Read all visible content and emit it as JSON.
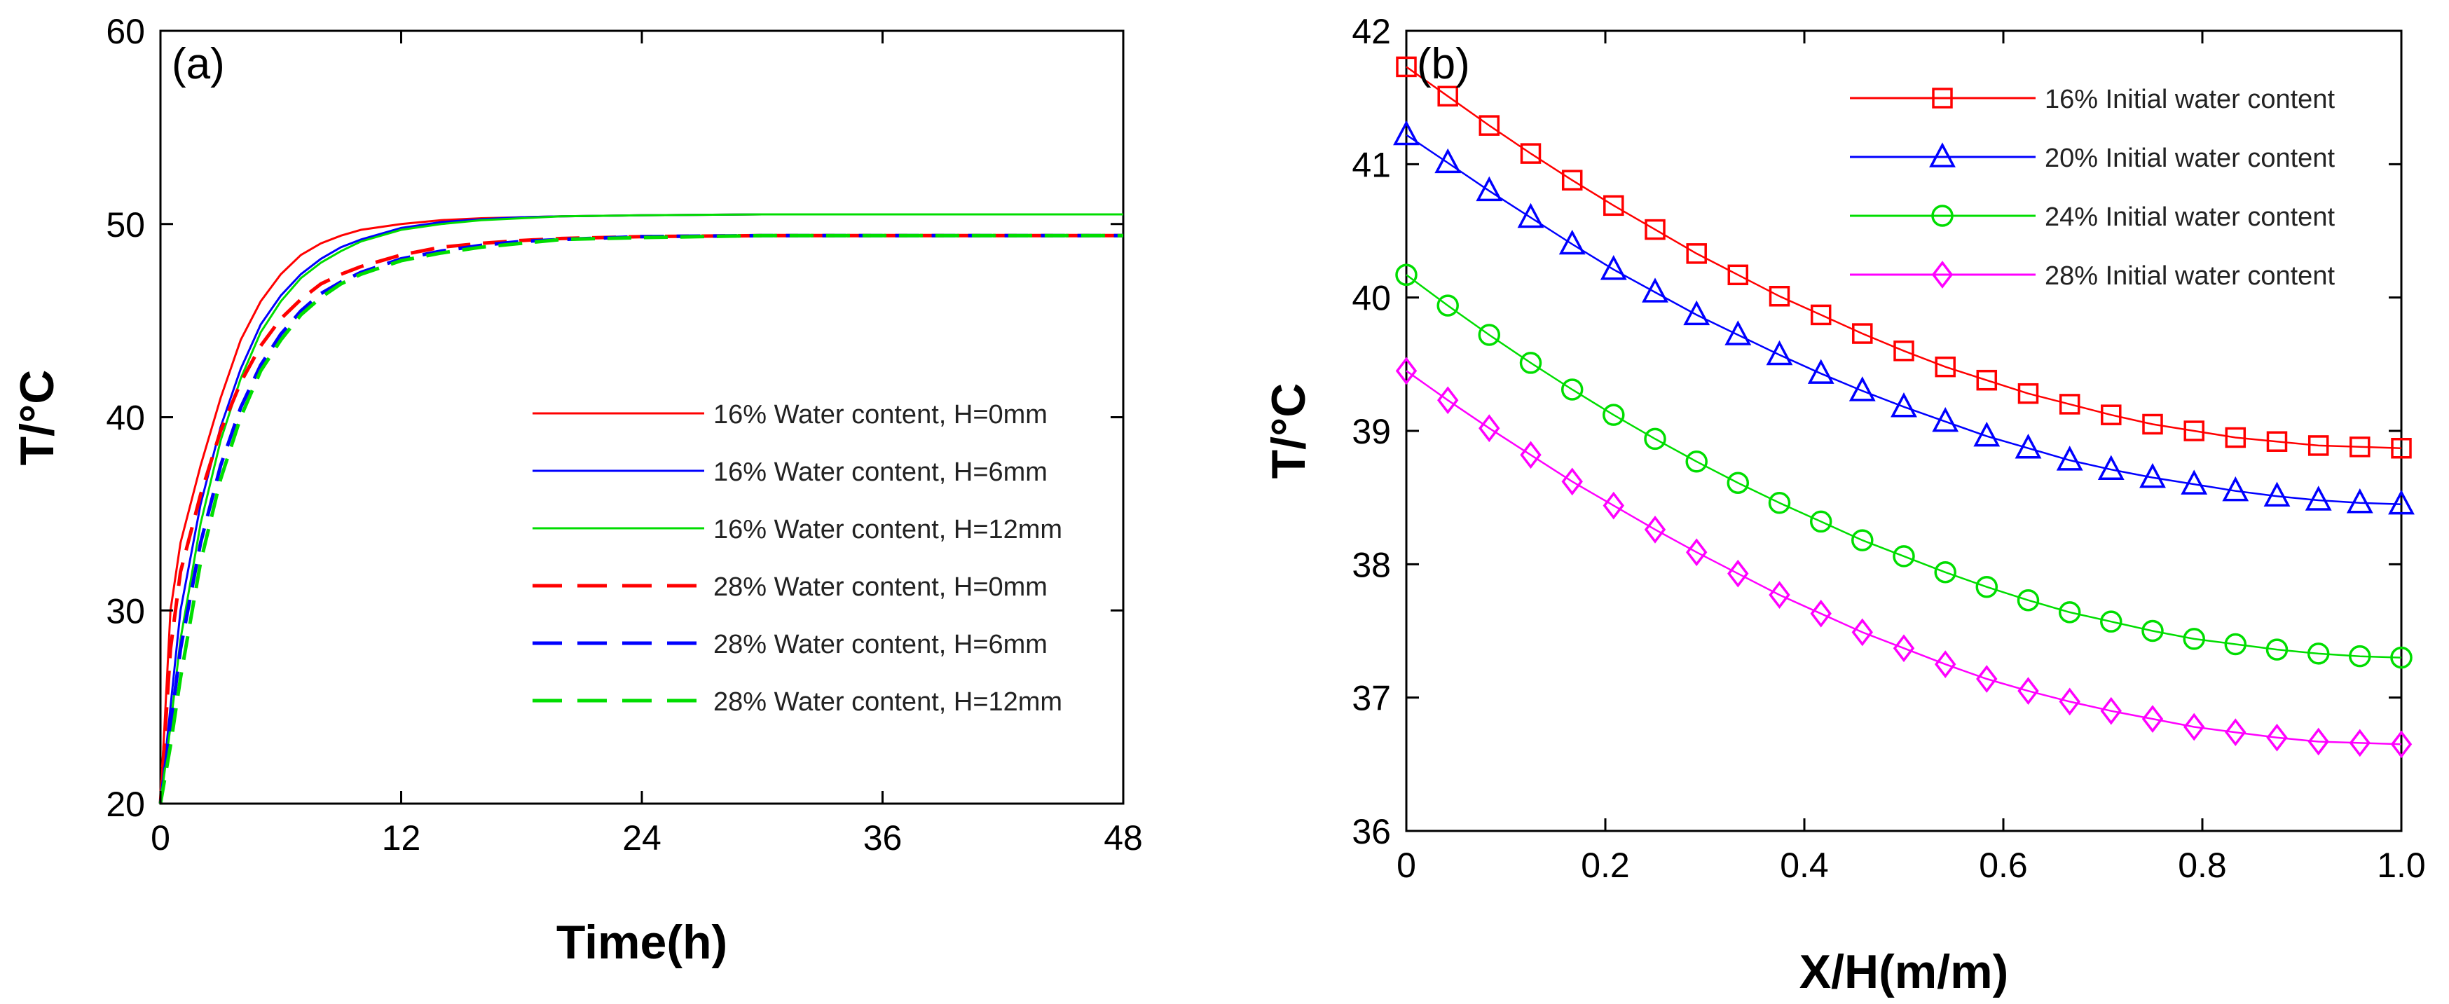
{
  "chart_data": [
    {
      "type": "line",
      "panel_label": "(a)",
      "title": "",
      "xlabel": "Time(h)",
      "ylabel": "T/°C",
      "xlim": [
        0,
        48
      ],
      "ylim": [
        20,
        60
      ],
      "xticks": [
        0,
        12,
        24,
        36,
        48
      ],
      "yticks": [
        20,
        30,
        40,
        50,
        60
      ],
      "grid": false,
      "legend_position": "right",
      "series": [
        {
          "name": "16% Water content, H=0mm",
          "color": "#ff0000",
          "dash": "solid",
          "x": [
            0,
            0.5,
            1,
            2,
            3,
            4,
            5,
            6,
            7,
            8,
            9,
            10,
            12,
            14,
            16,
            18,
            20,
            24,
            30,
            36,
            42,
            48
          ],
          "y": [
            20,
            30,
            33.5,
            37.5,
            41,
            44,
            46,
            47.4,
            48.4,
            49.0,
            49.4,
            49.7,
            50.0,
            50.2,
            50.3,
            50.35,
            50.4,
            50.45,
            50.5,
            50.5,
            50.5,
            50.5
          ]
        },
        {
          "name": "16% Water content, H=6mm",
          "color": "#0000ff",
          "dash": "solid",
          "x": [
            0,
            0.5,
            1,
            2,
            3,
            4,
            5,
            6,
            7,
            8,
            9,
            10,
            12,
            14,
            16,
            18,
            20,
            24,
            30,
            36,
            42,
            48
          ],
          "y": [
            20,
            25,
            30,
            35.5,
            39.5,
            42.5,
            44.8,
            46.3,
            47.4,
            48.2,
            48.8,
            49.2,
            49.8,
            50.1,
            50.25,
            50.35,
            50.4,
            50.45,
            50.5,
            50.5,
            50.5,
            50.5
          ]
        },
        {
          "name": "16% Water content, H=12mm",
          "color": "#00dd00",
          "dash": "solid",
          "x": [
            0,
            0.5,
            1,
            2,
            3,
            4,
            5,
            6,
            7,
            8,
            9,
            10,
            12,
            14,
            16,
            18,
            20,
            24,
            30,
            36,
            42,
            48
          ],
          "y": [
            20,
            24,
            28.5,
            34.5,
            38.8,
            42,
            44.4,
            46,
            47.2,
            48.0,
            48.6,
            49.1,
            49.7,
            50.0,
            50.2,
            50.3,
            50.4,
            50.45,
            50.5,
            50.5,
            50.5,
            50.5
          ]
        },
        {
          "name": "28% Water content, H=0mm",
          "color": "#ff0000",
          "dash": "dashed",
          "x": [
            0,
            0.5,
            1,
            2,
            3,
            4,
            5,
            6,
            7,
            8,
            9,
            10,
            12,
            14,
            16,
            18,
            20,
            24,
            30,
            36,
            42,
            48
          ],
          "y": [
            20,
            28,
            32,
            36,
            39.3,
            41.8,
            43.7,
            45.1,
            46.1,
            46.9,
            47.4,
            47.8,
            48.4,
            48.8,
            49.0,
            49.15,
            49.25,
            49.35,
            49.4,
            49.4,
            49.4,
            49.4
          ]
        },
        {
          "name": "28% Water content, H=6mm",
          "color": "#0000ff",
          "dash": "dashed",
          "x": [
            0,
            0.5,
            1,
            2,
            3,
            4,
            5,
            6,
            7,
            8,
            9,
            10,
            12,
            14,
            16,
            18,
            20,
            24,
            30,
            36,
            42,
            48
          ],
          "y": [
            20,
            24,
            28,
            33.5,
            37.5,
            40.5,
            42.7,
            44.3,
            45.5,
            46.4,
            47.0,
            47.5,
            48.2,
            48.6,
            48.9,
            49.1,
            49.2,
            49.35,
            49.4,
            49.4,
            49.4,
            49.4
          ]
        },
        {
          "name": "28% Water content, H=12mm",
          "color": "#00dd00",
          "dash": "dashed",
          "x": [
            0,
            0.5,
            1,
            2,
            3,
            4,
            5,
            6,
            7,
            8,
            9,
            10,
            12,
            14,
            16,
            18,
            20,
            24,
            30,
            36,
            42,
            48
          ],
          "y": [
            20,
            23,
            26.5,
            32.5,
            36.8,
            40,
            42.4,
            44.0,
            45.3,
            46.2,
            46.9,
            47.4,
            48.1,
            48.5,
            48.8,
            49.0,
            49.2,
            49.3,
            49.4,
            49.4,
            49.4,
            49.4
          ]
        }
      ]
    },
    {
      "type": "line",
      "panel_label": "(b)",
      "title": "",
      "xlabel": "X/H(m/m)",
      "ylabel": "T/°C",
      "xlim": [
        0,
        1
      ],
      "ylim": [
        36,
        42
      ],
      "xticks": [
        0,
        0.2,
        0.4,
        0.6,
        0.8,
        1.0
      ],
      "xtick_labels": [
        "0",
        "0.2",
        "0.4",
        "0.6",
        "0.8",
        "1.0"
      ],
      "yticks": [
        36,
        37,
        38,
        39,
        40,
        41,
        42
      ],
      "grid": false,
      "legend_position": "top-right",
      "x": [
        0,
        0.0417,
        0.0833,
        0.125,
        0.1667,
        0.2083,
        0.25,
        0.2917,
        0.3333,
        0.375,
        0.4167,
        0.4583,
        0.5,
        0.5417,
        0.5833,
        0.625,
        0.6667,
        0.7083,
        0.75,
        0.7917,
        0.8333,
        0.875,
        0.9167,
        0.9583,
        1.0
      ],
      "series": [
        {
          "name": "16% Initial water content",
          "color": "#ff0000",
          "marker": "square",
          "values": [
            41.73,
            41.51,
            41.29,
            41.08,
            40.88,
            40.69,
            40.51,
            40.33,
            40.17,
            40.01,
            39.87,
            39.73,
            39.6,
            39.48,
            39.38,
            39.28,
            39.2,
            39.12,
            39.05,
            39.0,
            38.95,
            38.92,
            38.89,
            38.88,
            38.87
          ]
        },
        {
          "name": "20% Initial water content",
          "color": "#0000ff",
          "marker": "triangle",
          "values": [
            41.22,
            41.01,
            40.8,
            40.6,
            40.4,
            40.21,
            40.04,
            39.87,
            39.72,
            39.57,
            39.43,
            39.3,
            39.18,
            39.07,
            38.96,
            38.87,
            38.78,
            38.71,
            38.65,
            38.6,
            38.55,
            38.51,
            38.48,
            38.46,
            38.45
          ]
        },
        {
          "name": "24% Initial water content",
          "color": "#00dd00",
          "marker": "circle",
          "values": [
            40.17,
            39.94,
            39.72,
            39.51,
            39.31,
            39.12,
            38.94,
            38.77,
            38.61,
            38.46,
            38.32,
            38.18,
            38.06,
            37.94,
            37.83,
            37.73,
            37.64,
            37.57,
            37.5,
            37.44,
            37.4,
            37.36,
            37.33,
            37.31,
            37.3
          ]
        },
        {
          "name": "28% Initial water content",
          "color": "#ff00ff",
          "marker": "diamond",
          "values": [
            39.45,
            39.23,
            39.02,
            38.82,
            38.62,
            38.44,
            38.26,
            38.09,
            37.93,
            37.77,
            37.63,
            37.49,
            37.37,
            37.25,
            37.14,
            37.05,
            36.97,
            36.9,
            36.84,
            36.78,
            36.74,
            36.7,
            36.67,
            36.66,
            36.65
          ]
        }
      ]
    }
  ]
}
